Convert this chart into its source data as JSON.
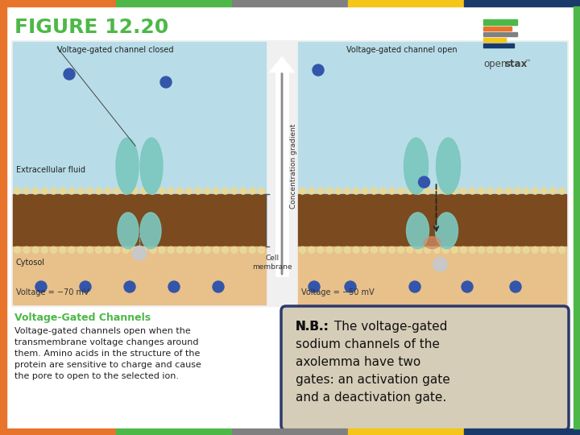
{
  "title": "FIGURE 12.20",
  "title_color": "#4DB848",
  "title_fontsize": 18,
  "bg_color": "#FFFFFF",
  "top_bar_colors": [
    "#E8732A",
    "#4DB848",
    "#808080",
    "#F5C518",
    "#1A3A6B"
  ],
  "bottom_bar_colors": [
    "#E8732A",
    "#4DB848",
    "#808080",
    "#F5C518",
    "#1A3A6B"
  ],
  "subtitle": "Voltage-Gated Channels",
  "subtitle_color": "#4DB848",
  "body_text_lines": [
    "Voltage-gated channels open when the",
    "transmembrane voltage changes around",
    "them. Amino acids in the structure of the",
    "protein are sensitive to charge and cause",
    "the pore to open to the selected ion."
  ],
  "nb_bold": "N.B.:",
  "nb_rest": " The voltage-gated\nsodium channels of the\naxolemma have two\ngates: an activation gate\nand a deactivation gate.",
  "nb_box_color": "#D6CDB8",
  "nb_box_border": "#2B3A6B",
  "left_panel_label": "Voltage-gated channel closed",
  "right_panel_label": "Voltage-gated channel open",
  "left_voltage": "Voltage = −70 mV",
  "right_voltage": "Voltage = −50 mV",
  "extracellular_label": "Extracellular fluid",
  "cytosol_label": "Cytosol",
  "cell_membrane_label": "Cell\nmembrane",
  "concentration_label": "Concentration gradient",
  "side_bar_left": "#E8732A",
  "side_bar_right": "#4DB848",
  "extracell_color": "#B8DDE8",
  "membrane_color": "#7B4A1E",
  "cytosol_color": "#E8C08A",
  "lipid_head_color": "#E8D898",
  "protein_color": "#7DC8C0",
  "ion_color": "#3355AA",
  "gate_ball_color": "#C8C8C8",
  "logo_bar_colors": [
    "#4DB848",
    "#E8732A",
    "#808080",
    "#F5C518",
    "#1A3A6B"
  ],
  "logo_bar_widths": [
    42,
    35,
    42,
    28,
    38
  ],
  "logo_bar_heights": [
    7,
    5,
    5,
    5,
    5
  ],
  "logo_bar_gaps": [
    0,
    9,
    16,
    23,
    30
  ]
}
